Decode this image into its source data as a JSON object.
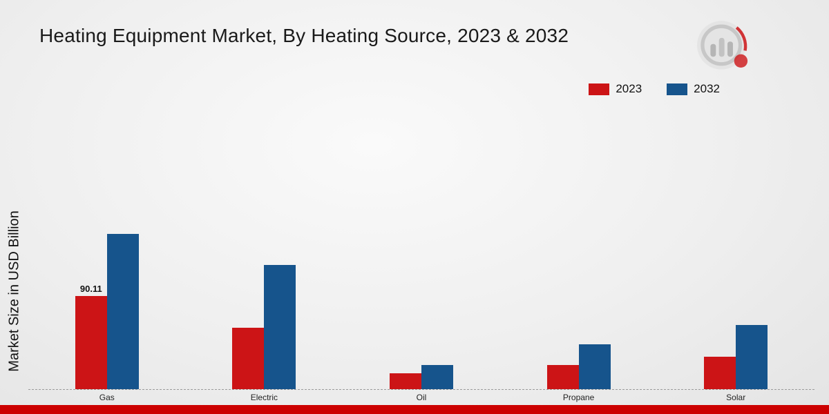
{
  "chart_data": {
    "type": "bar",
    "title": "Heating Equipment Market, By Heating Source, 2023 & 2032",
    "ylabel": "Market Size in USD Billion",
    "xlabel": "",
    "categories": [
      "Gas",
      "Electric",
      "Oil",
      "Propane",
      "Solar"
    ],
    "series": [
      {
        "name": "2023",
        "color": "#cc1416",
        "values": [
          90.11,
          59,
          15,
          23,
          31
        ],
        "labels": [
          "90.11",
          null,
          null,
          null,
          null
        ]
      },
      {
        "name": "2032",
        "color": "#16548c",
        "values": [
          150,
          120,
          23,
          43,
          62
        ],
        "labels": [
          null,
          null,
          null,
          null,
          null
        ]
      }
    ],
    "ylim": [
      0,
      283
    ],
    "grid": false,
    "legend_position": "top-right",
    "baseline_style": "dashed"
  },
  "icons": {
    "brand_logo": "bar-chart-magnifier-logo"
  },
  "footer": {
    "bar_color": "#cc0000"
  }
}
